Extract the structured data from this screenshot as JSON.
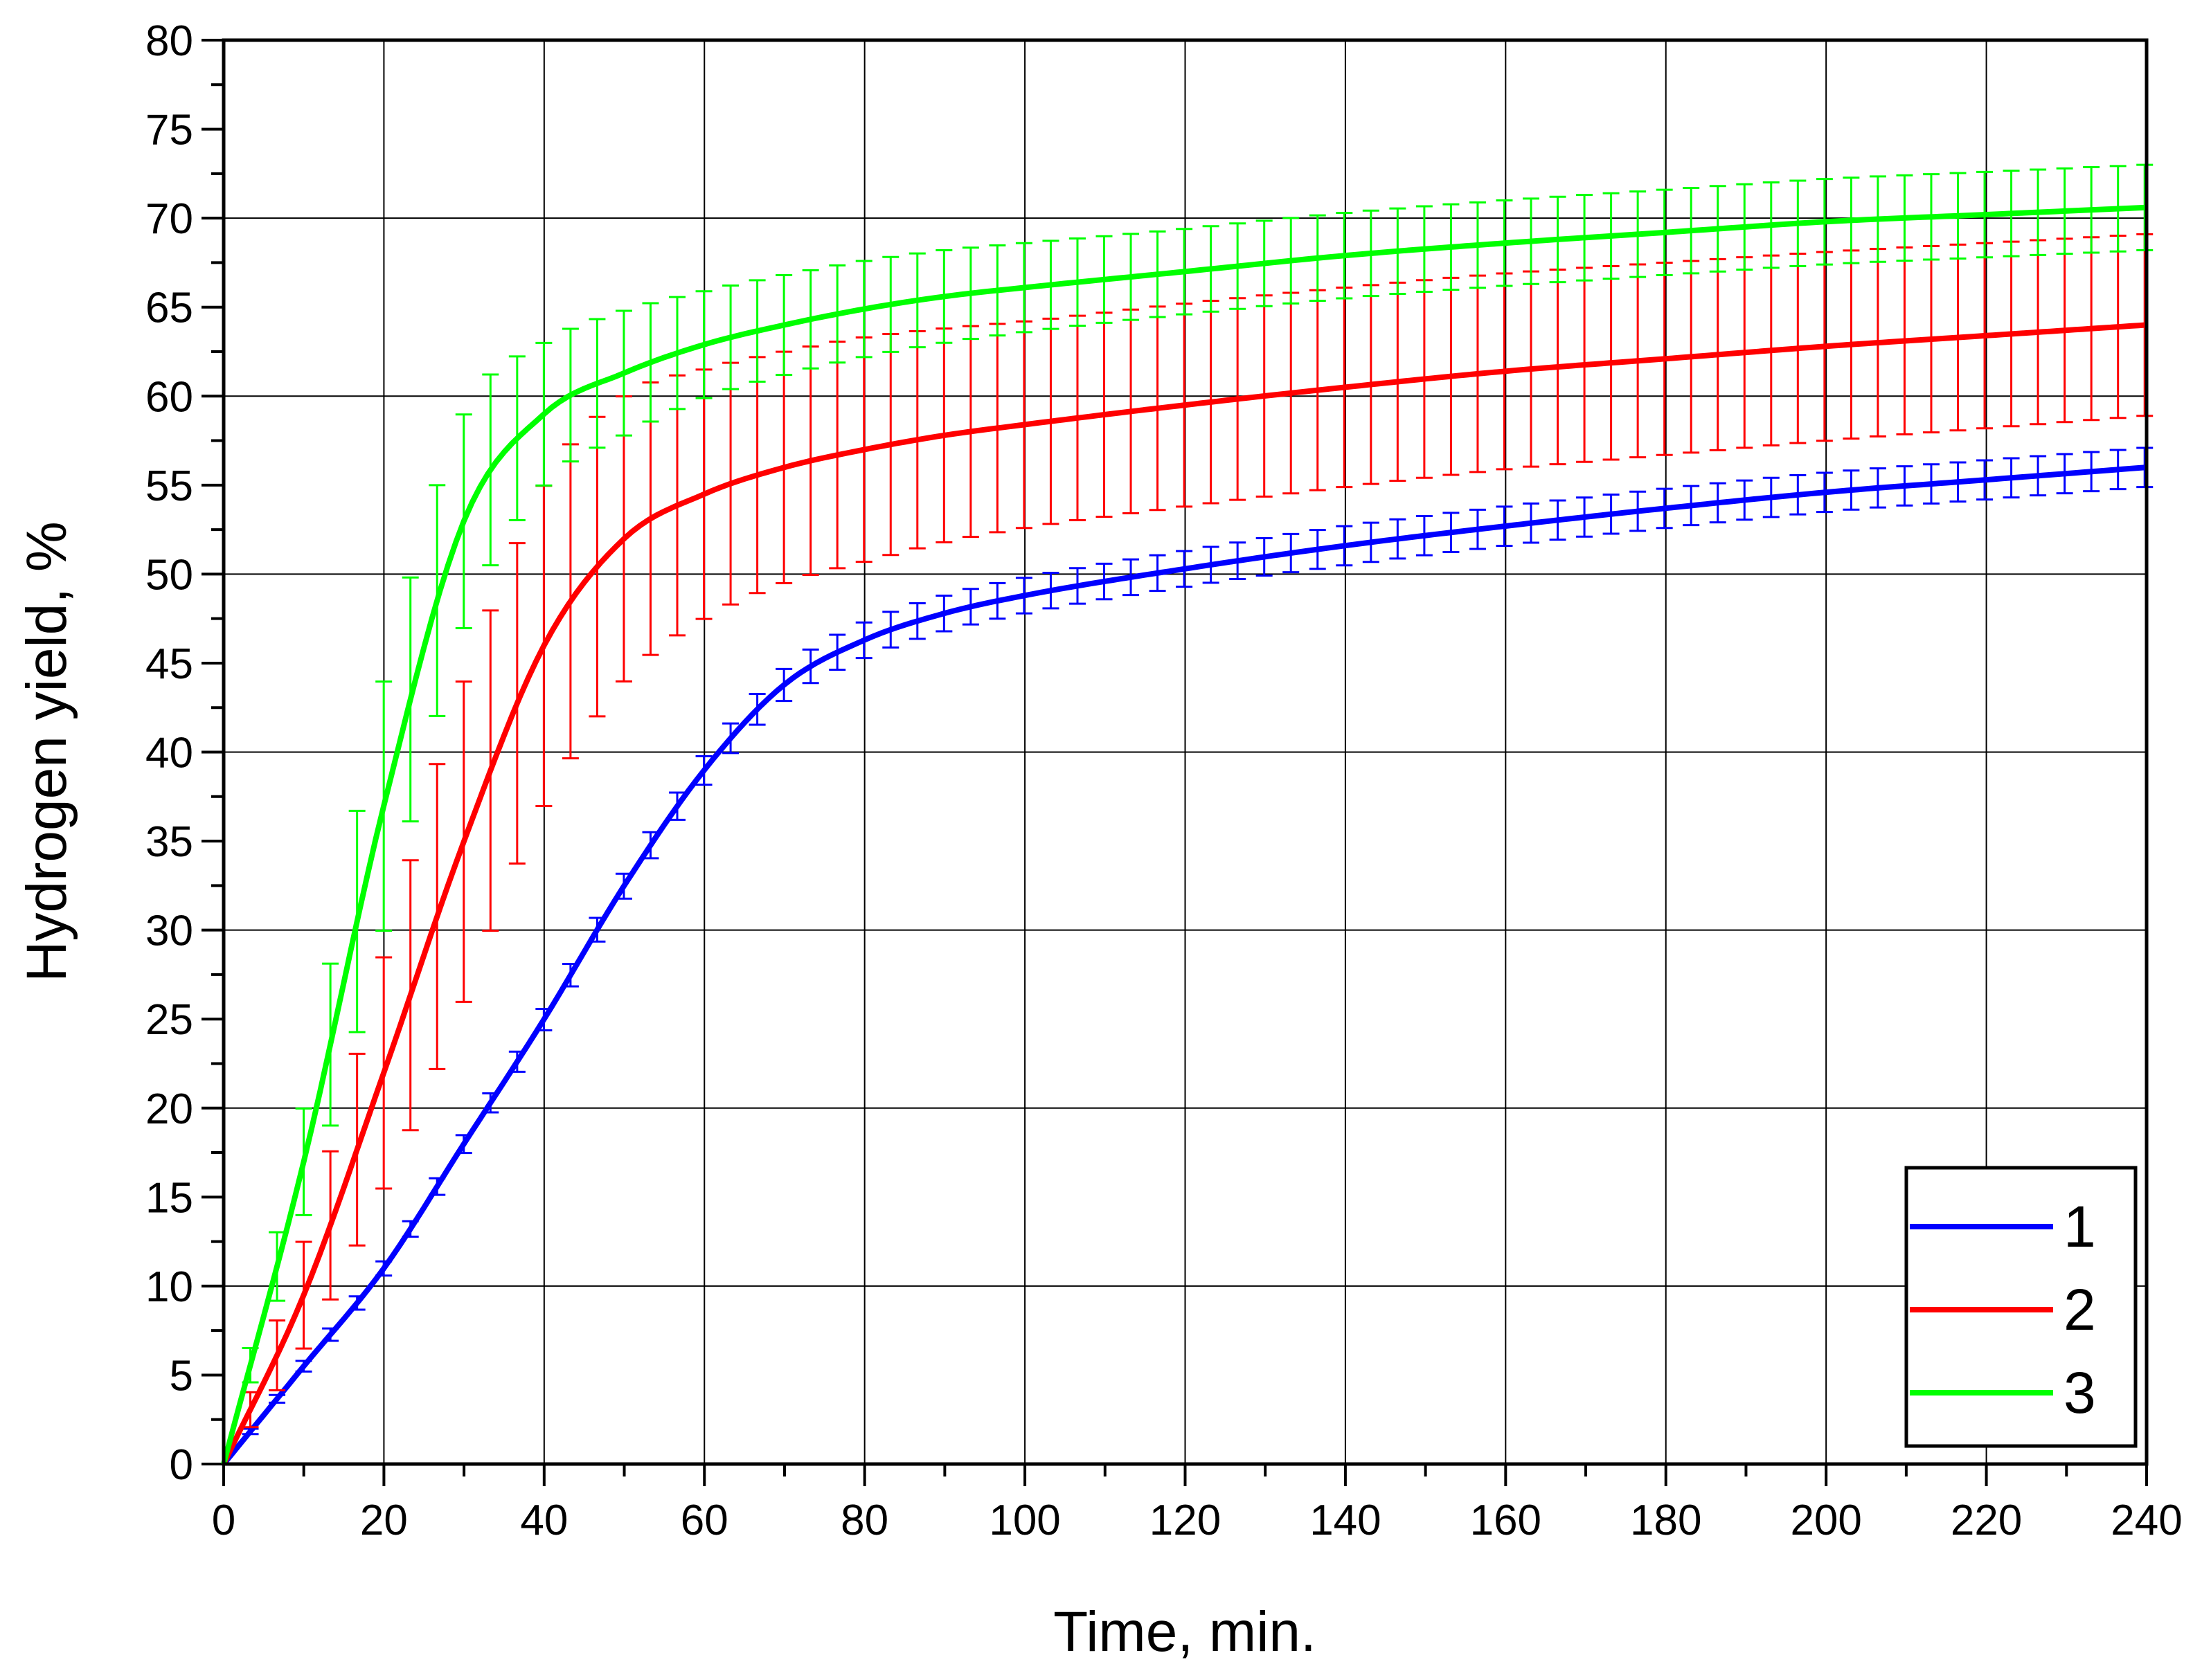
{
  "chart_data": {
    "type": "line",
    "title": "",
    "xlabel": "Time, min.",
    "ylabel": "Hydrogen yield, %",
    "xlim": [
      0,
      240
    ],
    "ylim": [
      0,
      80
    ],
    "xticks": [
      0,
      20,
      40,
      60,
      80,
      100,
      120,
      140,
      160,
      180,
      200,
      220,
      240
    ],
    "yticks": [
      0,
      5,
      10,
      15,
      20,
      25,
      30,
      35,
      40,
      45,
      50,
      55,
      60,
      65,
      70,
      75,
      80
    ],
    "xtick_labels": [
      "0",
      "20",
      "40",
      "60",
      "80",
      "100",
      "120",
      "140",
      "160",
      "180",
      "200",
      "220",
      "240"
    ],
    "ytick_labels": [
      "0",
      "5",
      "10",
      "15",
      "20",
      "25",
      "30",
      "35",
      "40",
      "45",
      "50",
      "55",
      "60",
      "65",
      "70",
      "75",
      "80"
    ],
    "grid": true,
    "legend_position": "bottom-right",
    "x": [
      0,
      10,
      20,
      30,
      40,
      50,
      60,
      70,
      80,
      90,
      100,
      120,
      140,
      160,
      180,
      200,
      220,
      240
    ],
    "series": [
      {
        "name": "1",
        "color": "#0000ff",
        "values": [
          0,
          5.5,
          11,
          18,
          25,
          32.5,
          39,
          43.8,
          46.3,
          47.8,
          48.8,
          50.3,
          51.6,
          52.7,
          53.7,
          54.6,
          55.3,
          56
        ],
        "errors": [
          0,
          0.3,
          0.4,
          0.5,
          0.6,
          0.7,
          0.8,
          0.9,
          1,
          1,
          1,
          1,
          1.1,
          1.1,
          1.1,
          1.1,
          1.1,
          1.1
        ]
      },
      {
        "name": "2",
        "color": "#ff0000",
        "values": [
          0,
          9.5,
          22,
          35,
          46,
          52,
          54.5,
          56,
          57,
          57.8,
          58.4,
          59.5,
          60.5,
          61.4,
          62.1,
          62.8,
          63.4,
          64
        ],
        "errors": [
          0,
          3,
          6.5,
          9,
          9,
          8,
          7,
          6.5,
          6.3,
          6,
          5.8,
          5.7,
          5.6,
          5.5,
          5.4,
          5.3,
          5.2,
          5.1
        ]
      },
      {
        "name": "3",
        "color": "#00ff00",
        "values": [
          0,
          17,
          37,
          53,
          59,
          61.3,
          62.9,
          64,
          64.9,
          65.6,
          66.1,
          67,
          67.9,
          68.6,
          69.2,
          69.8,
          70.2,
          70.6
        ],
        "errors": [
          0,
          3,
          7,
          6,
          4,
          3.5,
          3,
          2.8,
          2.7,
          2.6,
          2.5,
          2.4,
          2.4,
          2.4,
          2.4,
          2.4,
          2.4,
          2.4
        ]
      }
    ]
  }
}
